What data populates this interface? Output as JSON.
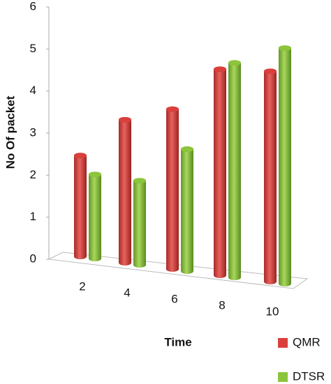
{
  "chart_data": {
    "type": "bar",
    "x_label": "Time",
    "y_label": "No Of packet",
    "categories": [
      "2",
      "4",
      "6",
      "8",
      "10"
    ],
    "series": [
      {
        "name": "QMR",
        "color": "#d9403c",
        "values": [
          2.4,
          3.4,
          3.8,
          4.9,
          5
        ]
      },
      {
        "name": "DTSR",
        "color": "#8cc43c",
        "values": [
          2,
          2,
          2.9,
          5.1,
          5.6
        ]
      }
    ],
    "ylim": [
      0,
      6
    ],
    "yticks": [
      0,
      1,
      2,
      3,
      4,
      5,
      6
    ],
    "legend": "bottom-right"
  }
}
